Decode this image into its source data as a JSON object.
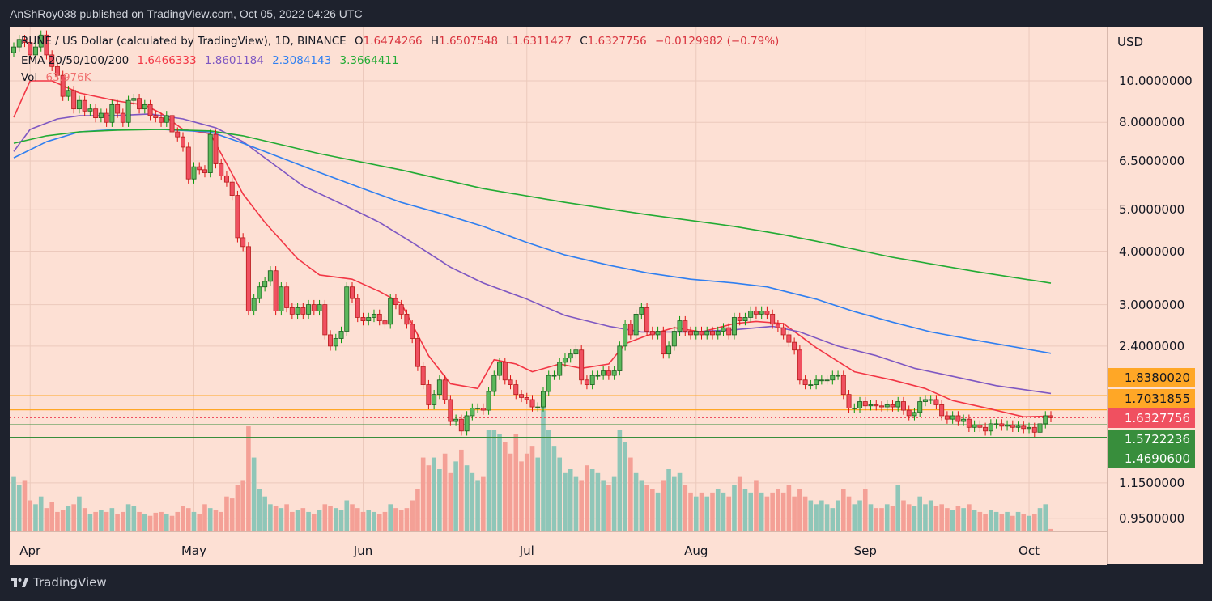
{
  "header": {
    "published": "AnShRoy038 published on TradingView.com, Oct 05, 2022 04:26 UTC"
  },
  "legend": {
    "symbol": "RUNE / US Dollar (calculated by TradingView), 1D, BINANCE",
    "o_label": "O",
    "o": "1.6474266",
    "h_label": "H",
    "h": "1.6507548",
    "l_label": "L",
    "l": "1.6311427",
    "c_label": "C",
    "c": "1.6327756",
    "change": "−0.0129982 (−0.79%)",
    "ema_label": "EMA 20/50/100/200",
    "ema20": "1.6466333",
    "ema50": "1.8601184",
    "ema100": "2.3084143",
    "ema200": "3.3664411",
    "vol_label": "Vol",
    "vol": "63.976K"
  },
  "colors": {
    "background": "#fde0d4",
    "up": "#5cb85c",
    "down": "#f05060",
    "ema20": "#f23645",
    "ema50": "#7e57c2",
    "ema100": "#2f7ff0",
    "ema200": "#22ab34",
    "orange_level": "#ffa726",
    "green_level": "#388e3c"
  },
  "footer": {
    "brand": "TradingView"
  },
  "chart_data": {
    "type": "candlestick",
    "scale": "log",
    "currency": "USD",
    "x_start": "2022-03-29",
    "x_end": "2022-10-05",
    "x_ticks": [
      "Apr",
      "May",
      "Jun",
      "Jul",
      "Aug",
      "Sep",
      "Oct"
    ],
    "x_tick_dates": [
      "2022-04-01",
      "2022-05-01",
      "2022-06-01",
      "2022-07-01",
      "2022-08-01",
      "2022-09-01",
      "2022-10-01"
    ],
    "y_ticks": [
      "10.0000000",
      "8.0000000",
      "6.5000000",
      "5.0000000",
      "4.0000000",
      "3.0000000",
      "2.4000000",
      "1.1500000",
      "0.9500000"
    ],
    "grid": true,
    "closes": [
      12.0,
      12.5,
      12.3,
      11.5,
      12.0,
      12.8,
      11.5,
      10.8,
      10.3,
      9.2,
      9.5,
      8.6,
      9.0,
      8.5,
      8.6,
      8.2,
      8.4,
      8.0,
      8.8,
      8.4,
      8.0,
      9.0,
      9.1,
      8.6,
      8.8,
      8.3,
      8.2,
      8.0,
      8.3,
      7.6,
      7.4,
      7.0,
      5.9,
      6.3,
      6.2,
      6.1,
      7.5,
      6.4,
      6.0,
      5.8,
      5.4,
      4.3,
      4.1,
      2.9,
      3.1,
      3.3,
      3.4,
      3.6,
      2.9,
      3.3,
      2.95,
      2.85,
      2.95,
      2.85,
      3.0,
      2.9,
      3.0,
      2.55,
      2.4,
      2.5,
      2.6,
      3.3,
      3.1,
      2.8,
      2.75,
      2.8,
      2.85,
      2.75,
      2.7,
      3.1,
      3.0,
      2.85,
      2.7,
      2.5,
      2.15,
      1.95,
      1.75,
      1.85,
      2.0,
      1.8,
      1.6,
      1.62,
      1.52,
      1.65,
      1.72,
      1.72,
      1.7,
      1.88,
      2.05,
      2.2,
      2.0,
      1.95,
      1.85,
      1.82,
      1.8,
      1.73,
      1.73,
      1.88,
      2.05,
      2.05,
      2.2,
      2.25,
      2.3,
      2.35,
      2.0,
      1.95,
      2.05,
      2.05,
      2.1,
      2.05,
      2.1,
      2.4,
      2.7,
      2.55,
      2.85,
      2.95,
      2.6,
      2.55,
      2.6,
      2.3,
      2.4,
      2.6,
      2.75,
      2.6,
      2.55,
      2.6,
      2.55,
      2.6,
      2.55,
      2.6,
      2.65,
      2.55,
      2.8,
      2.75,
      2.8,
      2.9,
      2.85,
      2.9,
      2.85,
      2.7,
      2.65,
      2.55,
      2.45,
      2.35,
      2.0,
      1.95,
      1.95,
      2.0,
      2.0,
      2.0,
      2.05,
      2.05,
      1.85,
      1.72,
      1.72,
      1.78,
      1.74,
      1.75,
      1.74,
      1.73,
      1.75,
      1.73,
      1.78,
      1.7,
      1.65,
      1.68,
      1.78,
      1.8,
      1.8,
      1.75,
      1.65,
      1.62,
      1.65,
      1.6,
      1.62,
      1.55,
      1.57,
      1.55,
      1.52,
      1.58,
      1.58,
      1.56,
      1.57,
      1.55,
      1.56,
      1.54,
      1.55,
      1.51,
      1.58,
      1.65,
      1.6327756
    ],
    "volumes_k": [
      1400,
      1200,
      1300,
      800,
      700,
      900,
      600,
      750,
      500,
      550,
      650,
      700,
      900,
      600,
      450,
      500,
      550,
      500,
      600,
      450,
      500,
      700,
      650,
      500,
      450,
      400,
      480,
      500,
      450,
      400,
      500,
      650,
      600,
      500,
      450,
      700,
      600,
      550,
      500,
      900,
      850,
      1200,
      1300,
      2700,
      1900,
      1100,
      900,
      700,
      650,
      600,
      700,
      500,
      550,
      600,
      500,
      450,
      550,
      700,
      650,
      600,
      550,
      800,
      700,
      600,
      500,
      550,
      500,
      450,
      500,
      700,
      600,
      550,
      600,
      800,
      1100,
      1900,
      1700,
      1900,
      1600,
      2000,
      1500,
      1800,
      2100,
      1700,
      1500,
      1300,
      1400,
      2600,
      2600,
      2500,
      2300,
      2000,
      2500,
      1800,
      2000,
      2200,
      1900,
      3200,
      2600,
      2200,
      1900,
      1500,
      1600,
      1400,
      1300,
      1700,
      1600,
      1500,
      1300,
      1200,
      1400,
      2600,
      2300,
      1900,
      1500,
      1300,
      1200,
      1100,
      1000,
      1300,
      1600,
      1400,
      1500,
      1200,
      1000,
      900,
      1000,
      900,
      1000,
      1100,
      1000,
      900,
      1200,
      1400,
      1100,
      1000,
      1300,
      1000,
      900,
      1000,
      1100,
      1000,
      1200,
      900,
      1100,
      900,
      800,
      700,
      800,
      700,
      600,
      800,
      1100,
      900,
      700,
      800,
      1100,
      700,
      600,
      600,
      700,
      650,
      1200,
      800,
      700,
      650,
      900,
      700,
      800,
      650,
      700,
      600,
      550,
      650,
      600,
      700,
      550,
      500,
      450,
      550,
      500,
      450,
      500,
      400,
      500,
      450,
      400,
      450,
      600,
      700,
      64
    ],
    "ema": [
      {
        "name": "EMA 20",
        "color": "#f23645",
        "points": [
          [
            "2022-03-29",
            8.22
          ],
          [
            "2022-04-01",
            10.0
          ],
          [
            "2022-04-05",
            10.0
          ],
          [
            "2022-04-10",
            9.37
          ],
          [
            "2022-04-17",
            8.97
          ],
          [
            "2022-04-22",
            8.78
          ],
          [
            "2022-04-25",
            8.4
          ],
          [
            "2022-04-29",
            7.7
          ],
          [
            "2022-05-04",
            7.53
          ],
          [
            "2022-05-10",
            5.44
          ],
          [
            "2022-05-14",
            4.67
          ],
          [
            "2022-05-20",
            3.84
          ],
          [
            "2022-05-24",
            3.52
          ],
          [
            "2022-05-30",
            3.44
          ],
          [
            "2022-06-04",
            3.22
          ],
          [
            "2022-06-08",
            3.02
          ],
          [
            "2022-06-13",
            2.28
          ],
          [
            "2022-06-17",
            1.96
          ],
          [
            "2022-06-22",
            1.91
          ],
          [
            "2022-06-25",
            2.23
          ],
          [
            "2022-06-29",
            2.18
          ],
          [
            "2022-07-02",
            2.09
          ],
          [
            "2022-07-07",
            2.18
          ],
          [
            "2022-07-11",
            2.13
          ],
          [
            "2022-07-16",
            2.18
          ],
          [
            "2022-07-19",
            2.43
          ],
          [
            "2022-07-23",
            2.54
          ],
          [
            "2022-07-28",
            2.65
          ],
          [
            "2022-08-02",
            2.59
          ],
          [
            "2022-08-08",
            2.71
          ],
          [
            "2022-08-12",
            2.74
          ],
          [
            "2022-08-17",
            2.71
          ],
          [
            "2022-08-20",
            2.54
          ],
          [
            "2022-08-23",
            2.38
          ],
          [
            "2022-08-30",
            2.09
          ],
          [
            "2022-09-06",
            2.0
          ],
          [
            "2022-09-12",
            1.91
          ],
          [
            "2022-09-17",
            1.79
          ],
          [
            "2022-09-24",
            1.71
          ],
          [
            "2022-09-30",
            1.64
          ],
          [
            "2022-10-05",
            1.6466
          ]
        ]
      },
      {
        "name": "EMA 50",
        "color": "#7e57c2",
        "points": [
          [
            "2022-03-29",
            6.84
          ],
          [
            "2022-04-01",
            7.7
          ],
          [
            "2022-04-06",
            8.15
          ],
          [
            "2022-04-10",
            8.29
          ],
          [
            "2022-04-16",
            8.29
          ],
          [
            "2022-04-23",
            8.37
          ],
          [
            "2022-04-29",
            8.15
          ],
          [
            "2022-05-05",
            7.77
          ],
          [
            "2022-05-10",
            7.21
          ],
          [
            "2022-05-14",
            6.61
          ],
          [
            "2022-05-21",
            5.68
          ],
          [
            "2022-05-29",
            5.09
          ],
          [
            "2022-06-04",
            4.67
          ],
          [
            "2022-06-10",
            4.19
          ],
          [
            "2022-06-17",
            3.67
          ],
          [
            "2022-06-23",
            3.37
          ],
          [
            "2022-07-01",
            3.09
          ],
          [
            "2022-07-08",
            2.83
          ],
          [
            "2022-07-16",
            2.67
          ],
          [
            "2022-07-22",
            2.59
          ],
          [
            "2022-07-31",
            2.59
          ],
          [
            "2022-08-08",
            2.62
          ],
          [
            "2022-08-15",
            2.67
          ],
          [
            "2022-08-20",
            2.59
          ],
          [
            "2022-08-27",
            2.4
          ],
          [
            "2022-09-03",
            2.28
          ],
          [
            "2022-09-10",
            2.13
          ],
          [
            "2022-09-17",
            2.04
          ],
          [
            "2022-09-25",
            1.94
          ],
          [
            "2022-10-05",
            1.8601
          ]
        ]
      },
      {
        "name": "EMA 100",
        "color": "#2f7ff0",
        "points": [
          [
            "2022-03-29",
            6.61
          ],
          [
            "2022-04-04",
            7.21
          ],
          [
            "2022-04-10",
            7.6
          ],
          [
            "2022-04-17",
            7.7
          ],
          [
            "2022-04-25",
            7.7
          ],
          [
            "2022-05-04",
            7.6
          ],
          [
            "2022-05-10",
            7.15
          ],
          [
            "2022-05-17",
            6.61
          ],
          [
            "2022-05-24",
            6.11
          ],
          [
            "2022-06-01",
            5.6
          ],
          [
            "2022-06-08",
            5.2
          ],
          [
            "2022-06-16",
            4.87
          ],
          [
            "2022-06-23",
            4.57
          ],
          [
            "2022-07-01",
            4.19
          ],
          [
            "2022-07-08",
            3.92
          ],
          [
            "2022-07-16",
            3.71
          ],
          [
            "2022-07-23",
            3.56
          ],
          [
            "2022-07-31",
            3.44
          ],
          [
            "2022-08-08",
            3.37
          ],
          [
            "2022-08-14",
            3.3
          ],
          [
            "2022-08-23",
            3.09
          ],
          [
            "2022-08-30",
            2.89
          ],
          [
            "2022-09-06",
            2.73
          ],
          [
            "2022-09-13",
            2.59
          ],
          [
            "2022-09-21",
            2.48
          ],
          [
            "2022-10-05",
            2.3084
          ]
        ]
      },
      {
        "name": "EMA 200",
        "color": "#22ab34",
        "points": [
          [
            "2022-03-29",
            7.15
          ],
          [
            "2022-04-04",
            7.44
          ],
          [
            "2022-04-10",
            7.6
          ],
          [
            "2022-04-17",
            7.67
          ],
          [
            "2022-04-25",
            7.7
          ],
          [
            "2022-05-04",
            7.64
          ],
          [
            "2022-05-10",
            7.44
          ],
          [
            "2022-05-24",
            6.76
          ],
          [
            "2022-06-08",
            6.19
          ],
          [
            "2022-06-23",
            5.6
          ],
          [
            "2022-07-08",
            5.2
          ],
          [
            "2022-07-23",
            4.87
          ],
          [
            "2022-08-08",
            4.57
          ],
          [
            "2022-08-17",
            4.37
          ],
          [
            "2022-08-23",
            4.22
          ],
          [
            "2022-09-06",
            3.87
          ],
          [
            "2022-09-21",
            3.59
          ],
          [
            "2022-10-05",
            3.3664
          ]
        ]
      }
    ],
    "levels": [
      {
        "price": 1.838002,
        "label": "1.8380020",
        "color": "#ffa726",
        "text": "#131722"
      },
      {
        "price": 1.7031855,
        "label": "1.7031855",
        "color": "#ffa726",
        "text": "#131722"
      },
      {
        "price": 1.6327756,
        "label": "1.6327756",
        "color": "#f05060",
        "text": "#ffffff",
        "dotted": true
      },
      {
        "price": 1.5722236,
        "label": "1.5722236",
        "color": "#388e3c",
        "text": "#ffffff"
      },
      {
        "price": 1.46906,
        "label": "1.4690600",
        "color": "#388e3c",
        "text": "#ffffff"
      }
    ]
  }
}
